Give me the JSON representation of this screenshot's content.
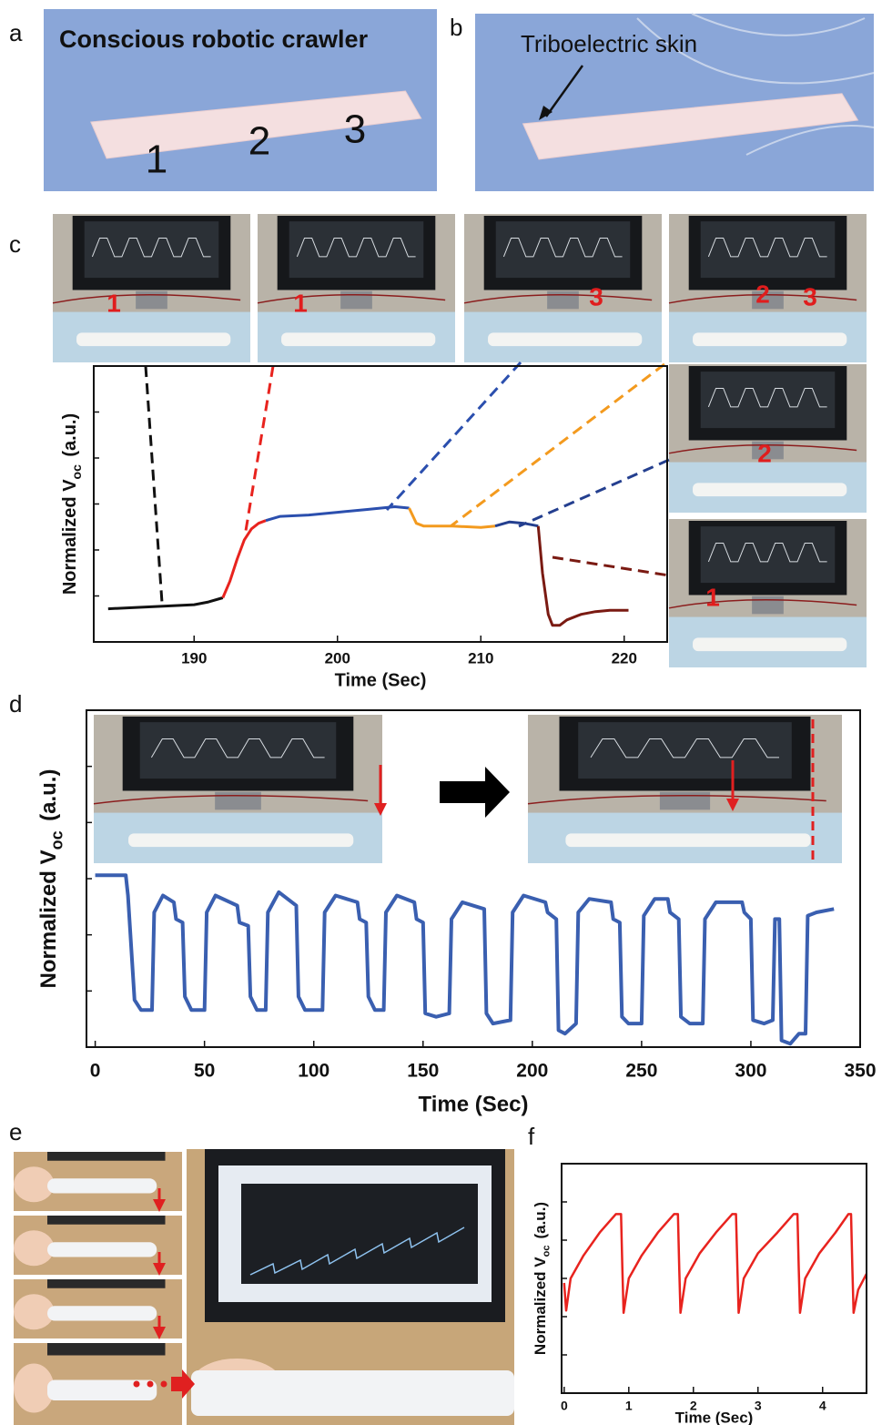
{
  "panel_labels": [
    "a",
    "b",
    "c",
    "d",
    "e",
    "f"
  ],
  "photo_texts": {
    "a": [
      "Conscious robotic crawler",
      "1",
      "2",
      "3"
    ],
    "b": [
      "Triboelectric skin"
    ],
    "c": [
      "1",
      "1",
      "3",
      "2",
      "3",
      "2",
      "1"
    ]
  },
  "chart_data": [
    {
      "type": "line",
      "xlabel": "Time (Sec)",
      "ylabel": [
        "Normalized V",
        "oc",
        "(a.u.)"
      ],
      "xlim": [
        183,
        223
      ],
      "xticks": [
        190,
        200,
        210,
        220
      ],
      "ylim": [
        0,
        1
      ],
      "series": [
        {
          "color": "#111111",
          "x": [
            184,
            186,
            188,
            190,
            191,
            192
          ],
          "values": [
            0.12,
            0.125,
            0.13,
            0.135,
            0.145,
            0.16
          ]
        },
        {
          "color": "#e8231e",
          "x": [
            192,
            192.5,
            193,
            193.5,
            194,
            194.5,
            195
          ],
          "values": [
            0.16,
            0.22,
            0.3,
            0.37,
            0.41,
            0.43,
            0.44
          ]
        },
        {
          "color": "#2b4fae",
          "x": [
            195,
            196,
            198,
            200,
            202,
            204,
            205
          ],
          "values": [
            0.44,
            0.455,
            0.46,
            0.47,
            0.48,
            0.49,
            0.485
          ]
        },
        {
          "color": "#f39a1e",
          "x": [
            205,
            205.5,
            206,
            208,
            210,
            211
          ],
          "values": [
            0.485,
            0.43,
            0.42,
            0.42,
            0.415,
            0.42
          ]
        },
        {
          "color": "#243f8f",
          "x": [
            211,
            212,
            213,
            214
          ],
          "values": [
            0.42,
            0.435,
            0.43,
            0.42
          ]
        },
        {
          "color": "#7a1a12",
          "x": [
            214,
            214.3,
            214.7,
            215,
            215.5,
            216,
            217,
            218,
            219,
            220.3
          ],
          "values": [
            0.42,
            0.25,
            0.1,
            0.06,
            0.06,
            0.08,
            0.1,
            0.11,
            0.115,
            0.115
          ]
        }
      ]
    },
    {
      "type": "line",
      "xlabel": "Time (Sec)",
      "ylabel": [
        "Normalized V",
        "oc",
        "(a.u.)"
      ],
      "xlim": [
        -4,
        350
      ],
      "xticks": [
        0,
        50,
        100,
        150,
        200,
        250,
        300,
        350
      ],
      "ylim": [
        0,
        1
      ],
      "series": [
        {
          "color": "#3a5fb0",
          "x": [
            0,
            14,
            15,
            18,
            21,
            26,
            27,
            31,
            36,
            37,
            40,
            41,
            44,
            50,
            51,
            55,
            65,
            66,
            70,
            71,
            74,
            78,
            79,
            84,
            92,
            93,
            96,
            104,
            105,
            110,
            120,
            121,
            124,
            125,
            128,
            132,
            133,
            138,
            146,
            147,
            150,
            151,
            156,
            162,
            163,
            168,
            178,
            179,
            182,
            190,
            191,
            196,
            206,
            207,
            211,
            212,
            215,
            220,
            221,
            226,
            236,
            237,
            240,
            241,
            244,
            250,
            251,
            256,
            262,
            263,
            267,
            268,
            272,
            278,
            279,
            284,
            296,
            297,
            300,
            301,
            306,
            310,
            311,
            313,
            314,
            318,
            322,
            325,
            326,
            330,
            338
          ],
          "values": [
            0.51,
            0.51,
            0.45,
            0.14,
            0.11,
            0.11,
            0.4,
            0.45,
            0.43,
            0.38,
            0.37,
            0.15,
            0.11,
            0.11,
            0.4,
            0.45,
            0.42,
            0.37,
            0.36,
            0.15,
            0.11,
            0.11,
            0.4,
            0.46,
            0.42,
            0.15,
            0.11,
            0.11,
            0.4,
            0.45,
            0.43,
            0.38,
            0.37,
            0.15,
            0.11,
            0.11,
            0.4,
            0.45,
            0.43,
            0.38,
            0.37,
            0.1,
            0.09,
            0.1,
            0.38,
            0.43,
            0.41,
            0.1,
            0.07,
            0.08,
            0.4,
            0.45,
            0.43,
            0.4,
            0.38,
            0.05,
            0.04,
            0.07,
            0.4,
            0.44,
            0.43,
            0.38,
            0.37,
            0.09,
            0.07,
            0.07,
            0.39,
            0.44,
            0.44,
            0.4,
            0.38,
            0.09,
            0.07,
            0.07,
            0.38,
            0.43,
            0.43,
            0.4,
            0.38,
            0.08,
            0.07,
            0.08,
            0.38,
            0.38,
            0.02,
            0.01,
            0.04,
            0.04,
            0.39,
            0.4,
            0.41
          ]
        }
      ]
    },
    {
      "type": "line",
      "xlabel": "Time (Sec)",
      "ylabel": [
        "Normalized V",
        "oc",
        "(a.u.)"
      ],
      "xlim": [
        -0.04,
        4.68
      ],
      "xticks": [
        0,
        1,
        2,
        3,
        4
      ],
      "ylim": [
        0,
        1
      ],
      "series": [
        {
          "color": "#e8231e",
          "x": [
            0,
            0.03,
            0.1,
            0.3,
            0.55,
            0.8,
            0.88,
            0.9,
            0.92,
            1.0,
            1.2,
            1.45,
            1.7,
            1.76,
            1.78,
            1.8,
            1.88,
            2.1,
            2.35,
            2.6,
            2.66,
            2.68,
            2.7,
            2.78,
            3.0,
            3.3,
            3.55,
            3.61,
            3.63,
            3.65,
            3.73,
            3.95,
            4.2,
            4.4,
            4.44,
            4.46,
            4.48,
            4.55,
            4.68
          ],
          "values": [
            0.48,
            0.36,
            0.5,
            0.6,
            0.7,
            0.78,
            0.78,
            0.55,
            0.35,
            0.5,
            0.6,
            0.7,
            0.78,
            0.78,
            0.55,
            0.35,
            0.5,
            0.61,
            0.7,
            0.78,
            0.78,
            0.55,
            0.35,
            0.5,
            0.61,
            0.7,
            0.78,
            0.78,
            0.55,
            0.35,
            0.5,
            0.61,
            0.7,
            0.78,
            0.78,
            0.55,
            0.35,
            0.45,
            0.52
          ]
        }
      ]
    }
  ]
}
